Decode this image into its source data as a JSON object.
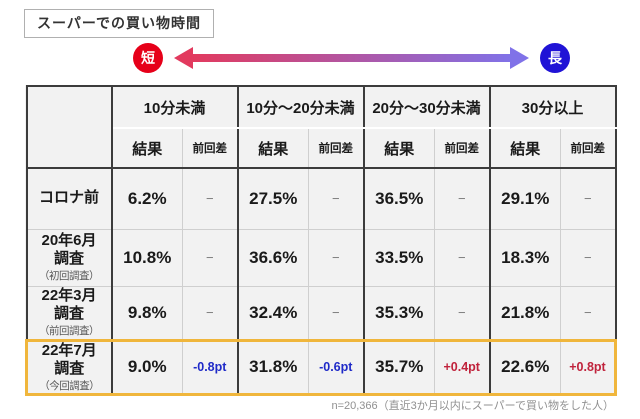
{
  "title": "スーパーでの買い物時間",
  "scale": {
    "short_label": "短",
    "long_label": "長"
  },
  "colors": {
    "short-circle": "#e60019",
    "long-circle": "#2013d6",
    "arrow-start": "#e23a5e",
    "arrow-end": "#8072e8",
    "diff-neg": "#1f2ac8",
    "diff-pos": "#c0233c",
    "highlight": "#f0b63c"
  },
  "table": {
    "corner_label": "",
    "col_groups": [
      "10分未満",
      "10分～20分未満",
      "20分～30分未満",
      "30分以上"
    ],
    "result_header": "結果",
    "diff_header": "前回差",
    "rows": [
      {
        "label_lines": [
          "コロナ前"
        ],
        "sublabel": "",
        "highlight": false,
        "cells": [
          {
            "result": "6.2%",
            "diff": "−",
            "sign": "none"
          },
          {
            "result": "27.5%",
            "diff": "−",
            "sign": "none"
          },
          {
            "result": "36.5%",
            "diff": "−",
            "sign": "none"
          },
          {
            "result": "29.1%",
            "diff": "−",
            "sign": "none"
          }
        ]
      },
      {
        "label_lines": [
          "20年6月",
          "調査"
        ],
        "sublabel": "（初回調査）",
        "highlight": false,
        "cells": [
          {
            "result": "10.8%",
            "diff": "−",
            "sign": "none"
          },
          {
            "result": "36.6%",
            "diff": "−",
            "sign": "none"
          },
          {
            "result": "33.5%",
            "diff": "−",
            "sign": "none"
          },
          {
            "result": "18.3%",
            "diff": "−",
            "sign": "none"
          }
        ]
      },
      {
        "label_lines": [
          "22年3月",
          "調査"
        ],
        "sublabel": "（前回調査）",
        "highlight": false,
        "cells": [
          {
            "result": "9.8%",
            "diff": "−",
            "sign": "none"
          },
          {
            "result": "32.4%",
            "diff": "−",
            "sign": "none"
          },
          {
            "result": "35.3%",
            "diff": "−",
            "sign": "none"
          },
          {
            "result": "21.8%",
            "diff": "−",
            "sign": "none"
          }
        ]
      },
      {
        "label_lines": [
          "22年7月",
          "調査"
        ],
        "sublabel": "（今回調査）",
        "highlight": true,
        "cells": [
          {
            "result": "9.0%",
            "diff": "-0.8pt",
            "sign": "neg"
          },
          {
            "result": "31.8%",
            "diff": "-0.6pt",
            "sign": "neg"
          },
          {
            "result": "35.7%",
            "diff": "+0.4pt",
            "sign": "pos"
          },
          {
            "result": "22.6%",
            "diff": "+0.8pt",
            "sign": "pos"
          }
        ]
      }
    ]
  },
  "footnote": "n=20,366（直近3か月以内にスーパーで買い物をした人）",
  "chart_data": {
    "type": "table",
    "title": "スーパーでの買い物時間",
    "categories": [
      "10分未満",
      "10分～20分未満",
      "20分～30分未満",
      "30分以上"
    ],
    "unit": "%",
    "series": [
      {
        "name": "コロナ前",
        "values": [
          6.2,
          27.5,
          36.5,
          29.1
        ],
        "diffs_pt": [
          null,
          null,
          null,
          null
        ]
      },
      {
        "name": "20年6月調査（初回調査）",
        "values": [
          10.8,
          36.6,
          33.5,
          18.3
        ],
        "diffs_pt": [
          null,
          null,
          null,
          null
        ]
      },
      {
        "name": "22年3月調査（前回調査）",
        "values": [
          9.8,
          32.4,
          35.3,
          21.8
        ],
        "diffs_pt": [
          null,
          null,
          null,
          null
        ]
      },
      {
        "name": "22年7月調査（今回調査）",
        "values": [
          9.0,
          31.8,
          35.7,
          22.6
        ],
        "diffs_pt": [
          -0.8,
          -0.6,
          0.4,
          0.8
        ]
      }
    ],
    "scale_annotation": {
      "left": "短",
      "right": "長"
    },
    "note": "n=20,366（直近3か月以内にスーパーで買い物をした人）"
  }
}
